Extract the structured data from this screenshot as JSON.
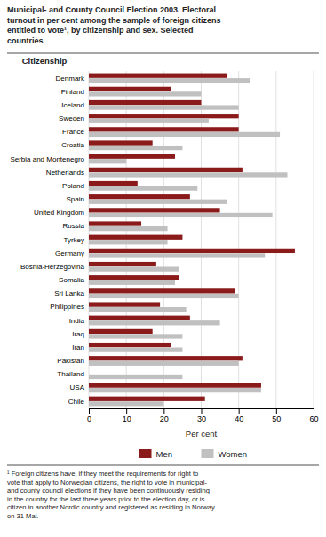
{
  "chart_data": {
    "type": "bar",
    "orientation": "horizontal",
    "title": "Municipal- and County Council Election 2003. Electoral\nturnout in per cent among the sample of foreign citizens\nentitled to vote¹, by citizenship and sex. Selected\ncountries",
    "xlabel": "Per cent",
    "ylabel": "Citizenship",
    "categories": [
      "Denmark",
      "Finland",
      "Iceland",
      "Sweden",
      "France",
      "Croatia",
      "Serbia and Montenegro",
      "Netherlands",
      "Poland",
      "Spain",
      "United Kingdom",
      "Russia",
      "Tyrkey",
      "Germany",
      "Bosnia-Herzegovina",
      "Somalia",
      "Sri Lanka",
      "Philippines",
      "India",
      "Iraq",
      "Iran",
      "Pakistan",
      "Thailand",
      "USA",
      "Chile"
    ],
    "series": [
      {
        "name": "Men",
        "color": "#8B1A1A",
        "values": [
          37,
          22,
          30,
          40,
          40,
          17,
          23,
          41,
          13,
          27,
          35,
          14,
          25,
          55,
          18,
          24,
          39,
          19,
          27,
          17,
          22,
          41,
          0,
          46,
          31
        ]
      },
      {
        "name": "Women",
        "color": "#C0C0C0",
        "values": [
          43,
          30,
          40,
          32,
          51,
          25,
          10,
          53,
          29,
          37,
          49,
          21,
          21,
          47,
          24,
          23,
          40,
          26,
          35,
          25,
          25,
          40,
          25,
          46,
          20
        ]
      }
    ],
    "xlim": [
      0,
      60
    ],
    "xticks": [
      0,
      10,
      20,
      30,
      40,
      50,
      60
    ],
    "grid": true,
    "legend": "bottom",
    "annotations": [
      "¹ Foreign citizens have, if they meet the requirements for right to\nvote that apply to Norwegian citizens, the right to vote in municipal-\nand county council elections if they have been continuously residing\nin the country for the last three years prior to the election day, or is\ncitizen in another Nordic country and registered as residing in Norway\non 31 Mai."
    ]
  }
}
